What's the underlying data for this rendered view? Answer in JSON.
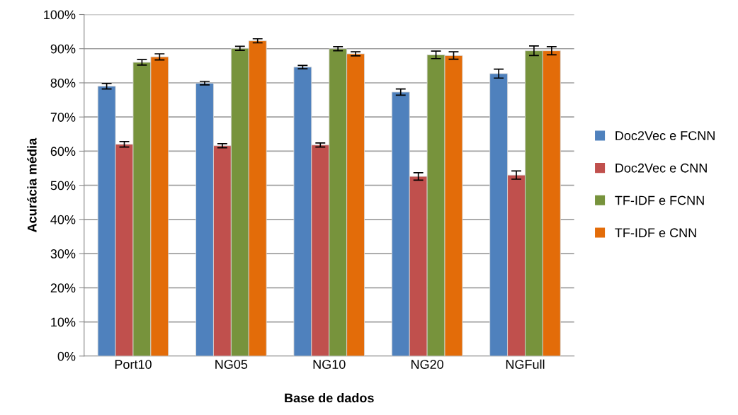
{
  "chart_data": {
    "type": "bar",
    "xlabel": "Base de dados",
    "ylabel": "Acurácia média",
    "categories": [
      "Port10",
      "NG05",
      "NG10",
      "NG20",
      "NGFull"
    ],
    "series": [
      {
        "name": "Doc2Vec e FCNN",
        "color": "#4f81bd",
        "values": [
          79.0,
          79.9,
          84.6,
          77.3,
          82.7
        ],
        "errors": [
          0.8,
          0.5,
          0.5,
          0.9,
          1.3
        ]
      },
      {
        "name": "Doc2Vec e CNN",
        "color": "#c0504d",
        "values": [
          62.0,
          61.6,
          61.8,
          52.6,
          53.0
        ],
        "errors": [
          0.8,
          0.6,
          0.6,
          1.1,
          1.2
        ]
      },
      {
        "name": "TF-IDF e FCNN",
        "color": "#77933c",
        "values": [
          86.0,
          90.1,
          90.0,
          88.2,
          89.4
        ],
        "errors": [
          0.8,
          0.6,
          0.6,
          1.1,
          1.4
        ]
      },
      {
        "name": "TF-IDF e CNN",
        "color": "#e36c09",
        "values": [
          87.6,
          92.3,
          88.5,
          88.0,
          89.4
        ],
        "errors": [
          0.9,
          0.6,
          0.6,
          1.1,
          1.2
        ]
      }
    ],
    "ylim": [
      0,
      100
    ],
    "yticks": [
      {
        "value": 0,
        "label": "0%"
      },
      {
        "value": 10,
        "label": "10%"
      },
      {
        "value": 20,
        "label": "20%"
      },
      {
        "value": 30,
        "label": "30%"
      },
      {
        "value": 40,
        "label": "40%"
      },
      {
        "value": 50,
        "label": "50%"
      },
      {
        "value": 60,
        "label": "60%"
      },
      {
        "value": 70,
        "label": "70%"
      },
      {
        "value": 80,
        "label": "80%"
      },
      {
        "value": 90,
        "label": "90%"
      },
      {
        "value": 100,
        "label": "100%"
      }
    ],
    "grid": "y",
    "legend": "right"
  }
}
